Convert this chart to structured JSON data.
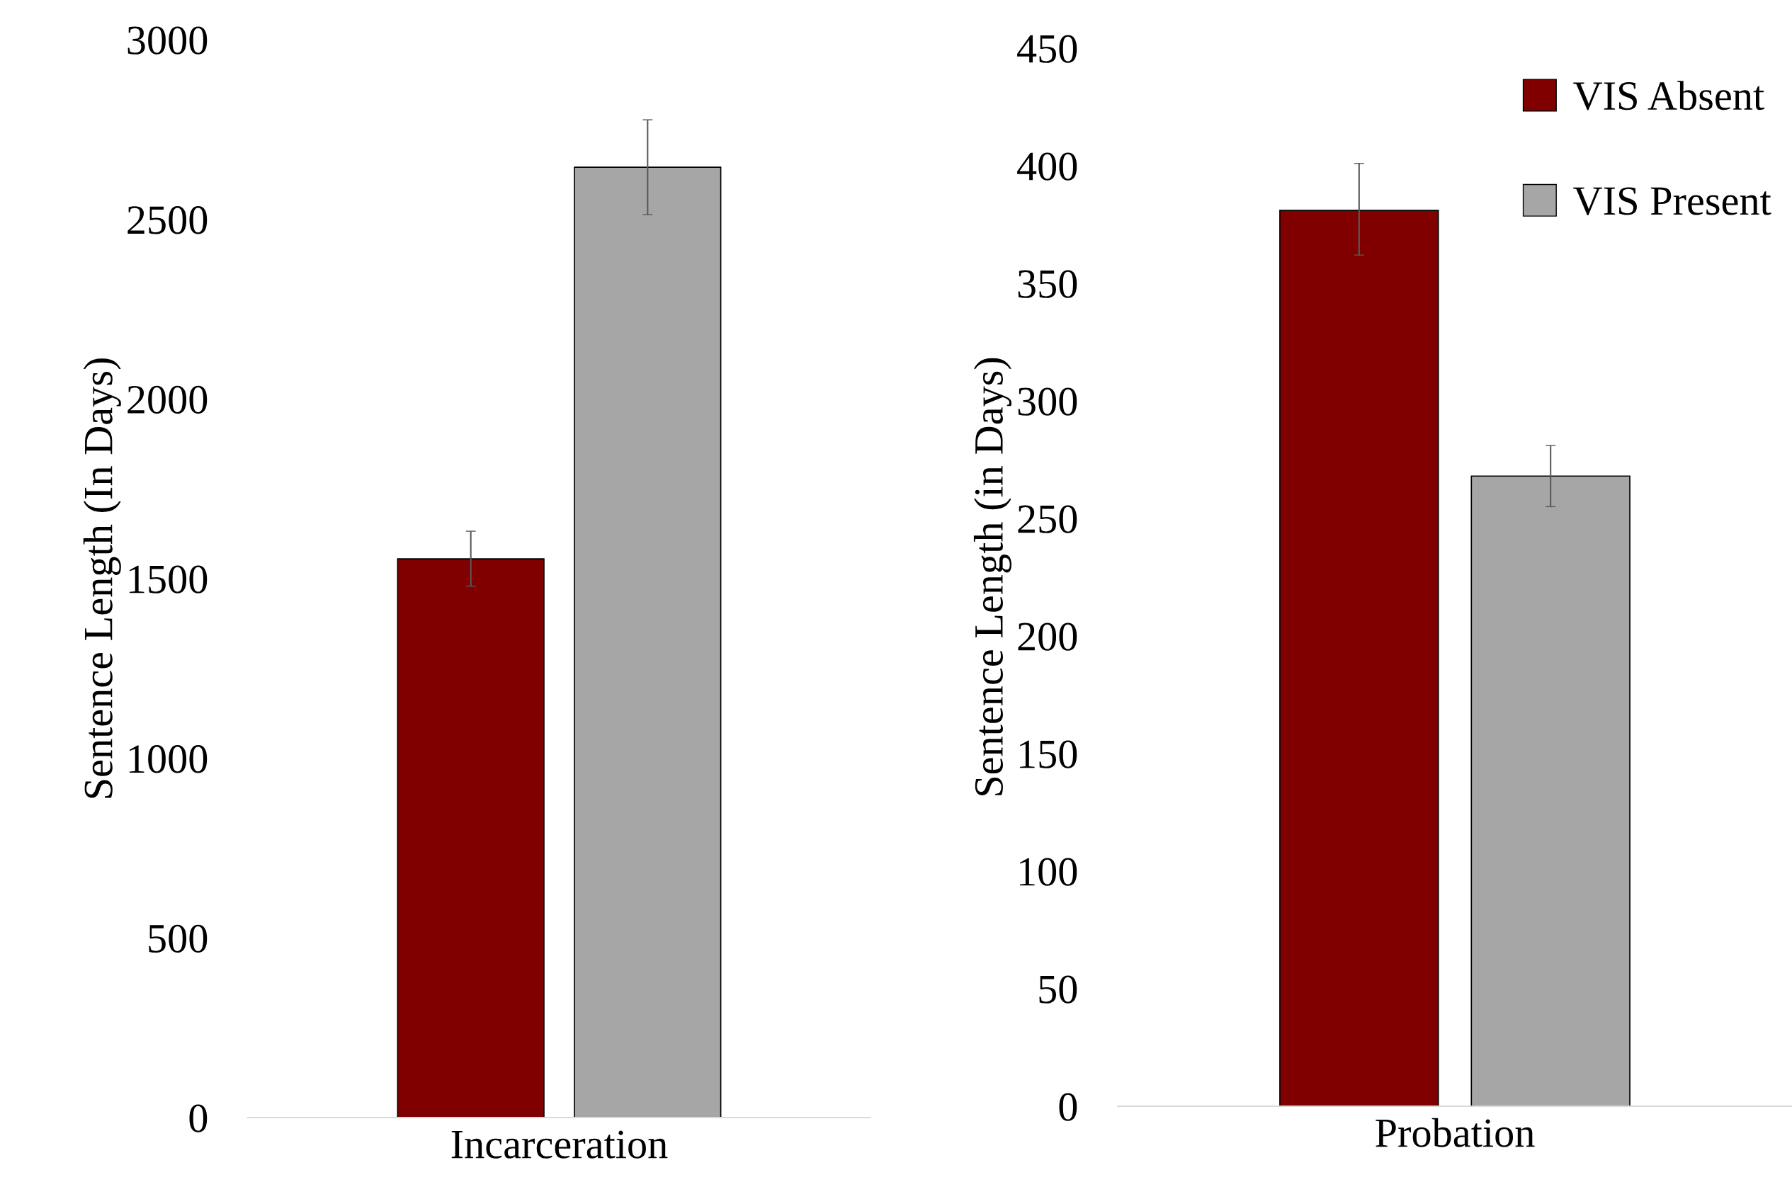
{
  "chart_data": [
    {
      "type": "bar",
      "ylabel": "Sentence Length (In Days)",
      "categories": [
        "Incarceration"
      ],
      "series": [
        {
          "color": "#800000",
          "values": [
            1555
          ],
          "errors": [
            [
              1479,
              1632
            ]
          ]
        },
        {
          "color": "#a6a6a6",
          "values": [
            2645
          ],
          "errors": [
            [
              2513,
              2777
            ]
          ]
        }
      ],
      "ylim": [
        0,
        3000
      ],
      "yticks": [
        0,
        500,
        1000,
        1500,
        2000,
        2500,
        3000
      ],
      "grid": false,
      "legend": false
    },
    {
      "type": "bar",
      "ylabel": "Sentence Length (in Days)",
      "categories": [
        "Probation"
      ],
      "series": [
        {
          "name": "VIS Absent",
          "color": "#800000",
          "values": [
            381
          ],
          "errors": [
            [
              362,
              401
            ]
          ]
        },
        {
          "name": "VIS Present",
          "color": "#a6a6a6",
          "values": [
            268
          ],
          "errors": [
            [
              255,
              281
            ]
          ]
        }
      ],
      "ylim": [
        0,
        450
      ],
      "yticks": [
        0,
        50,
        100,
        150,
        200,
        250,
        300,
        350,
        400,
        450
      ],
      "grid": false,
      "legend": "top right"
    }
  ]
}
